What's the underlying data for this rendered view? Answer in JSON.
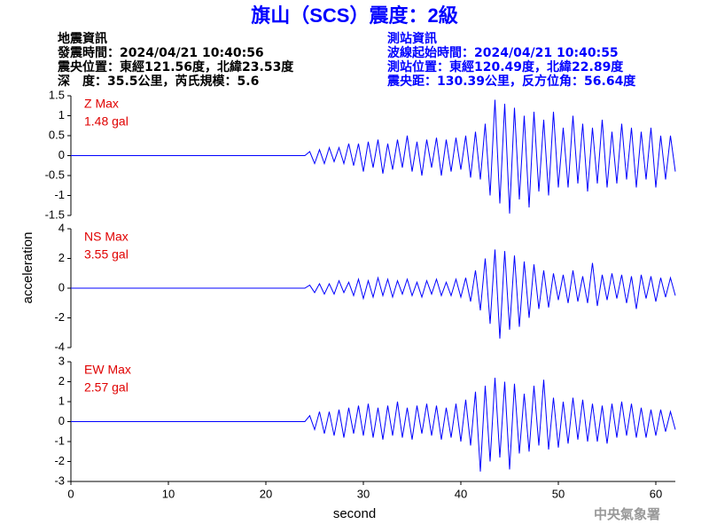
{
  "title": "旗山（SCS）震度：2級",
  "header": {
    "left": [
      "地震資訊",
      "發震時間：2024/04/21 10:40:56",
      "震央位置：東經121.56度，北緯23.53度",
      "深　度：35.5公里，芮氏規模：5.6"
    ],
    "right": [
      "測站資訊",
      "波線起始時間：2024/04/21 10:40:55",
      "測站位置：東經120.49度，北緯22.89度",
      "震央距：130.39公里，反方位角：56.64度"
    ]
  },
  "ylabel": "acceleration",
  "xlabel": "second",
  "footer": "中央氣象署",
  "chart_data": [
    {
      "type": "line",
      "label": "Z Max",
      "max_label": "1.48 gal",
      "color": "#0000ff",
      "xlim": [
        0,
        62
      ],
      "ylim": [
        -1.5,
        1.5
      ],
      "yticks": [
        -1.5,
        -1,
        -0.5,
        0,
        0.5,
        1,
        1.5
      ],
      "x": [
        0,
        24,
        24.5,
        25,
        25.5,
        26,
        26.5,
        27,
        27.5,
        28,
        28.5,
        29,
        29.5,
        30,
        30.5,
        31,
        31.5,
        32,
        32.5,
        33,
        33.5,
        34,
        34.5,
        35,
        35.5,
        36,
        36.5,
        37,
        37.5,
        38,
        38.5,
        39,
        39.5,
        40,
        40.5,
        41,
        41.5,
        42,
        42.5,
        43,
        43.5,
        44,
        44.5,
        45,
        45.5,
        46,
        46.5,
        47,
        47.5,
        48,
        48.5,
        49,
        49.5,
        50,
        50.5,
        51,
        51.5,
        52,
        52.5,
        53,
        53.5,
        54,
        54.5,
        55,
        55.5,
        56,
        56.5,
        57,
        57.5,
        58,
        58.5,
        59,
        59.5,
        60,
        60.5,
        61,
        61.5,
        62
      ],
      "values": [
        0,
        0,
        0.1,
        -0.2,
        0.15,
        -0.2,
        0.2,
        -0.15,
        0.2,
        -0.2,
        0.3,
        -0.25,
        0.3,
        -0.4,
        0.35,
        -0.3,
        0.4,
        -0.45,
        0.3,
        -0.35,
        0.4,
        -0.3,
        0.5,
        -0.4,
        0.35,
        -0.5,
        0.4,
        -0.3,
        0.45,
        -0.5,
        0.4,
        -0.4,
        0.45,
        -0.35,
        0.5,
        -0.55,
        0.6,
        -0.6,
        0.8,
        -1.0,
        1.4,
        -1.2,
        1.3,
        -1.45,
        1.2,
        -1.1,
        1.0,
        -1.3,
        1.1,
        -0.9,
        0.9,
        -1.0,
        1.1,
        -0.8,
        0.7,
        -0.8,
        1.0,
        -0.7,
        0.8,
        -0.9,
        0.7,
        -0.7,
        0.9,
        -0.8,
        0.6,
        -0.7,
        0.8,
        -0.6,
        0.7,
        -0.8,
        0.6,
        -0.6,
        0.7,
        -0.8,
        0.5,
        -0.6,
        0.5,
        -0.4
      ]
    },
    {
      "type": "line",
      "label": "NS Max",
      "max_label": "3.55 gal",
      "color": "#0000ff",
      "xlim": [
        0,
        62
      ],
      "ylim": [
        -4,
        4
      ],
      "yticks": [
        -4,
        -2,
        0,
        2,
        4
      ],
      "x": [
        0,
        24,
        24.5,
        25,
        25.5,
        26,
        26.5,
        27,
        27.5,
        28,
        28.5,
        29,
        29.5,
        30,
        30.5,
        31,
        31.5,
        32,
        32.5,
        33,
        33.5,
        34,
        34.5,
        35,
        35.5,
        36,
        36.5,
        37,
        37.5,
        38,
        38.5,
        39,
        39.5,
        40,
        40.5,
        41,
        41.5,
        42,
        42.5,
        43,
        43.5,
        44,
        44.5,
        45,
        45.5,
        46,
        46.5,
        47,
        47.5,
        48,
        48.5,
        49,
        49.5,
        50,
        50.5,
        51,
        51.5,
        52,
        52.5,
        53,
        53.5,
        54,
        54.5,
        55,
        55.5,
        56,
        56.5,
        57,
        57.5,
        58,
        58.5,
        59,
        59.5,
        60,
        60.5,
        61,
        61.5,
        62
      ],
      "values": [
        0,
        0,
        0.2,
        -0.3,
        0.3,
        -0.4,
        0.3,
        -0.4,
        0.5,
        -0.3,
        0.4,
        -0.5,
        0.6,
        -0.7,
        0.5,
        -0.6,
        0.7,
        -0.5,
        0.6,
        -0.6,
        0.5,
        -0.4,
        0.6,
        -0.5,
        0.4,
        -0.6,
        0.5,
        -0.4,
        0.6,
        -0.5,
        0.4,
        -0.5,
        0.6,
        -0.6,
        0.7,
        -0.9,
        1.2,
        -1.5,
        2.0,
        -2.4,
        2.6,
        -3.4,
        2.5,
        -2.8,
        2.2,
        -2.6,
        1.8,
        -2.0,
        1.6,
        -1.4,
        1.2,
        -1.3,
        1.0,
        -0.8,
        0.9,
        -1.0,
        1.2,
        -0.9,
        0.8,
        -1.0,
        1.7,
        -1.2,
        0.9,
        -0.8,
        1.0,
        -0.7,
        0.9,
        -1.0,
        0.8,
        -1.4,
        0.9,
        -0.7,
        0.8,
        -0.9,
        0.7,
        -0.6,
        0.7,
        -0.5
      ]
    },
    {
      "type": "line",
      "label": "EW Max",
      "max_label": "2.57 gal",
      "color": "#0000ff",
      "xlim": [
        0,
        62
      ],
      "xticks": [
        0,
        10,
        20,
        30,
        40,
        50,
        60
      ],
      "ylim": [
        -3,
        3
      ],
      "yticks": [
        -3,
        -2,
        -1,
        0,
        1,
        2,
        3
      ],
      "x": [
        0,
        24,
        24.5,
        25,
        25.5,
        26,
        26.5,
        27,
        27.5,
        28,
        28.5,
        29,
        29.5,
        30,
        30.5,
        31,
        31.5,
        32,
        32.5,
        33,
        33.5,
        34,
        34.5,
        35,
        35.5,
        36,
        36.5,
        37,
        37.5,
        38,
        38.5,
        39,
        39.5,
        40,
        40.5,
        41,
        41.5,
        42,
        42.5,
        43,
        43.5,
        44,
        44.5,
        45,
        45.5,
        46,
        46.5,
        47,
        47.5,
        48,
        48.5,
        49,
        49.5,
        50,
        50.5,
        51,
        51.5,
        52,
        52.5,
        53,
        53.5,
        54,
        54.5,
        55,
        55.5,
        56,
        56.5,
        57,
        57.5,
        58,
        58.5,
        59,
        59.5,
        60,
        60.5,
        61,
        61.5,
        62
      ],
      "values": [
        0,
        0,
        0.3,
        -0.4,
        0.5,
        -0.6,
        0.5,
        -0.7,
        0.6,
        -0.8,
        0.7,
        -0.6,
        0.8,
        -0.7,
        0.9,
        -0.8,
        0.7,
        -0.9,
        0.8,
        -0.7,
        1.0,
        -0.8,
        0.7,
        -0.9,
        0.8,
        -0.6,
        0.9,
        -0.7,
        0.8,
        -0.9,
        0.7,
        -0.8,
        0.9,
        -1.0,
        1.1,
        -1.2,
        1.5,
        -2.5,
        1.8,
        -2.0,
        2.2,
        -1.8,
        2.0,
        -2.4,
        1.9,
        -1.6,
        1.4,
        -1.5,
        1.8,
        -1.2,
        2.1,
        -1.4,
        1.2,
        -1.3,
        1.0,
        -1.1,
        1.2,
        -0.9,
        1.1,
        -1.0,
        0.9,
        -1.0,
        0.8,
        -1.1,
        0.9,
        -0.8,
        1.0,
        -0.7,
        0.9,
        -0.8,
        0.7,
        -0.8,
        0.6,
        -0.7,
        0.6,
        -0.5,
        0.5,
        -0.4
      ]
    }
  ]
}
